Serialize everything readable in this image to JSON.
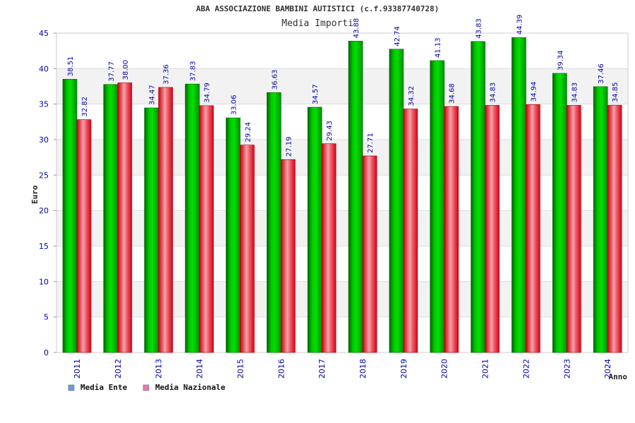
{
  "chart_data": {
    "type": "bar",
    "title": "ABA ASSOCIAZIONE BAMBINI AUTISTICI (c.f.93387740728)",
    "subtitle": "Media Importi",
    "xlabel": "Anno",
    "ylabel": "Euro",
    "ylim": [
      0,
      45
    ],
    "yticks": [
      "0",
      "5",
      "10",
      "15",
      "20",
      "25",
      "30",
      "35",
      "40",
      "45"
    ],
    "grid": true,
    "legend_position": "bottom-left",
    "categories": [
      "2011",
      "2012",
      "2013",
      "2014",
      "2015",
      "2016",
      "2017",
      "2018",
      "2019",
      "2020",
      "2021",
      "2022",
      "2023",
      "2024"
    ],
    "series": [
      {
        "name": "Media Ente",
        "values": [
          38.51,
          37.77,
          34.47,
          37.83,
          33.06,
          36.63,
          34.57,
          43.88,
          42.74,
          41.13,
          43.83,
          44.39,
          39.34,
          37.46
        ],
        "labels": [
          "38.51",
          "37.77",
          "34.47",
          "37.83",
          "33.06",
          "36.63",
          "34.57",
          "43.88",
          "42.74",
          "41.13",
          "43.83",
          "44.39",
          "39.34",
          "37.46"
        ],
        "color": "#00b400",
        "legend_color": "#6a9de6"
      },
      {
        "name": "Media Nazionale",
        "values": [
          32.82,
          38.0,
          37.36,
          34.79,
          29.24,
          27.19,
          29.43,
          27.71,
          34.32,
          34.68,
          34.83,
          34.94,
          34.83,
          34.85
        ],
        "labels": [
          "32.82",
          "38.00",
          "37.36",
          "34.79",
          "29.24",
          "27.19",
          "29.43",
          "27.71",
          "34.32",
          "34.68",
          "34.83",
          "34.94",
          "34.83",
          "34.85"
        ],
        "color": "#e81e2c",
        "legend_color": "#e47bb0"
      }
    ]
  }
}
